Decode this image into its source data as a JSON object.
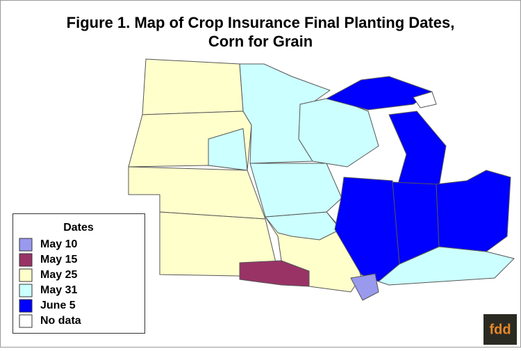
{
  "title": [
    "Figure 1.  Map of Crop Insurance Final Planting Dates,",
    "Corn for Grain"
  ],
  "legend": {
    "title": "Dates",
    "items": [
      {
        "label": "May 10",
        "color": "#9999ee"
      },
      {
        "label": "May 15",
        "color": "#993366"
      },
      {
        "label": "May 25",
        "color": "#ffffcc"
      },
      {
        "label": "May 31",
        "color": "#ccffff"
      },
      {
        "label": "June 5",
        "color": "#0000ff"
      },
      {
        "label": "No data",
        "color": "#ffffff"
      }
    ]
  },
  "logo": "fdd"
}
